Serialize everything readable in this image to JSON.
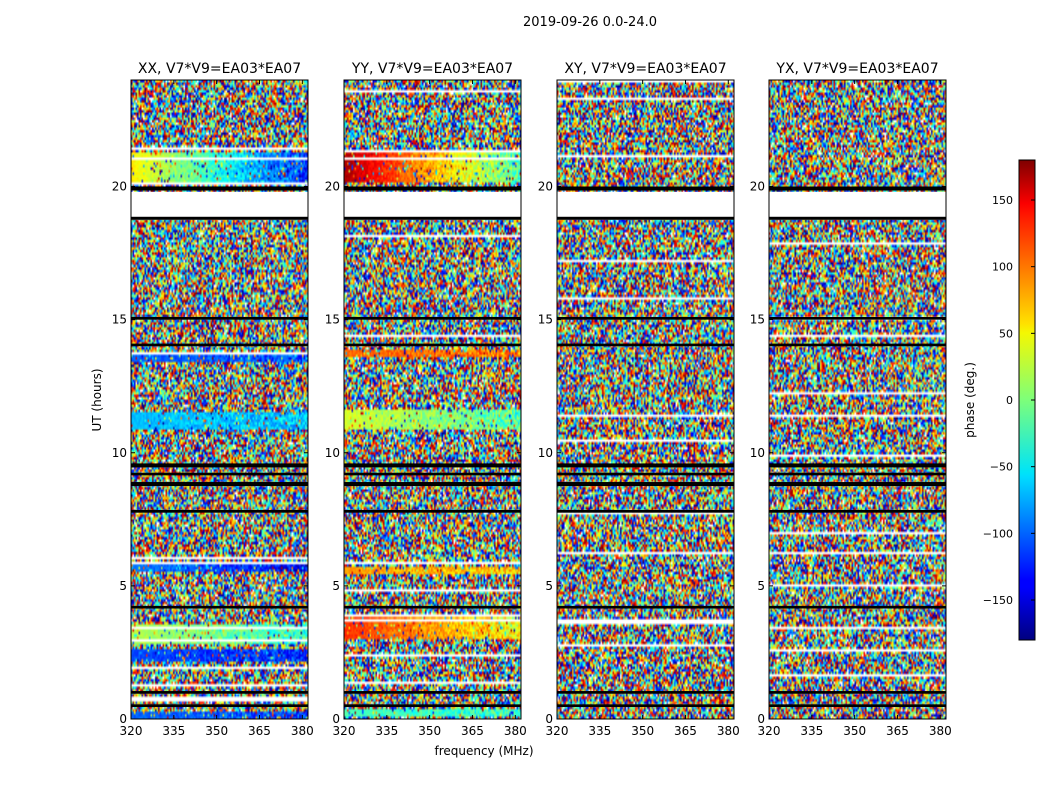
{
  "figure": {
    "suptitle": "2019-09-26 0.0-24.0",
    "xlabel": "frequency (MHz)",
    "ylabel": "UT (hours)"
  },
  "chart_data": {
    "type": "heatmap",
    "title": "2019-09-26 0.0-24.0",
    "xlabel": "frequency (MHz)",
    "ylabel": "UT (hours)",
    "xlim": [
      320,
      382
    ],
    "ylim": [
      0,
      24
    ],
    "xticks": [
      320,
      335,
      350,
      365,
      380
    ],
    "yticks": [
      0,
      5,
      10,
      15,
      20
    ],
    "panels": [
      {
        "title": "XX, V7*V9=EA03*EA07",
        "correlation": "XX",
        "coherent_bands": [
          {
            "ut": [
              20.2,
              21.3
            ],
            "phase_start": 50,
            "phase_end": -120
          },
          {
            "ut": [
              10.9,
              11.5
            ],
            "phase_start": -70,
            "phase_end": -60
          },
          {
            "ut": [
              13.4,
              13.7
            ],
            "phase_start": -100,
            "phase_end": -110
          },
          {
            "ut": [
              5.5,
              5.8
            ],
            "phase_start": -90,
            "phase_end": -140
          },
          {
            "ut": [
              2.8,
              3.6
            ],
            "phase_start": 20,
            "phase_end": -30
          },
          {
            "ut": [
              2.2,
              2.6
            ],
            "phase_start": -110,
            "phase_end": -120
          },
          {
            "ut": [
              0.0,
              0.3
            ],
            "phase_start": -100,
            "phase_end": -110
          }
        ]
      },
      {
        "title": "YY, V7*V9=EA03*EA07",
        "correlation": "YY",
        "coherent_bands": [
          {
            "ut": [
              20.2,
              21.3
            ],
            "phase_start": 165,
            "phase_end": -20
          },
          {
            "ut": [
              13.6,
              13.9
            ],
            "phase_start": 100,
            "phase_end": 90
          },
          {
            "ut": [
              10.9,
              11.6
            ],
            "phase_start": 30,
            "phase_end": -20
          },
          {
            "ut": [
              5.4,
              5.7
            ],
            "phase_start": 80,
            "phase_end": 60
          },
          {
            "ut": [
              3.0,
              3.8
            ],
            "phase_start": 120,
            "phase_end": 40
          },
          {
            "ut": [
              0.1,
              0.4
            ],
            "phase_start": -20,
            "phase_end": -30
          }
        ]
      },
      {
        "title": "XY, V7*V9=EA03*EA07",
        "correlation": "XY",
        "coherent_bands": []
      },
      {
        "title": "YX, V7*V9=EA03*EA07",
        "correlation": "YX",
        "coherent_bands": []
      }
    ],
    "flagged_ut": [
      [
        19.85,
        20.0
      ],
      [
        18.75,
        19.8
      ],
      [
        15.0,
        15.1
      ],
      [
        14.0,
        14.1
      ],
      [
        9.45,
        9.6
      ],
      [
        9.15,
        9.25
      ],
      [
        8.75,
        8.9
      ],
      [
        7.75,
        7.85
      ],
      [
        4.15,
        4.25
      ],
      [
        0.95,
        1.05
      ],
      [
        0.45,
        0.55
      ]
    ],
    "colorbar": {
      "label": "phase (deg.)",
      "min": -180,
      "max": 180,
      "ticks": [
        -150,
        -100,
        -50,
        0,
        50,
        100,
        150
      ],
      "tick_labels": [
        "−150",
        "−100",
        "−50",
        "0",
        "50",
        "100",
        "150"
      ],
      "colormap": "jet"
    }
  }
}
